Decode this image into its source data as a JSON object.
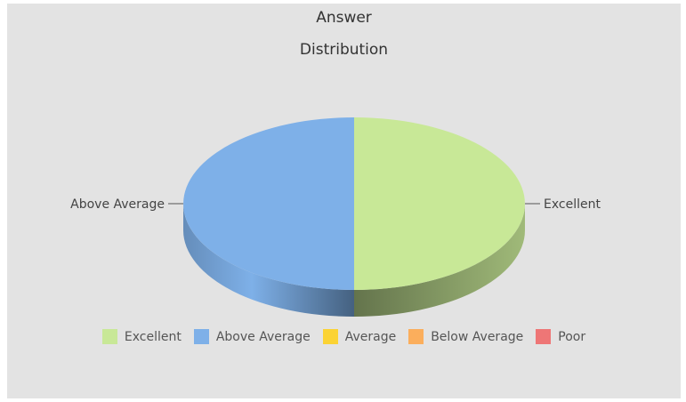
{
  "chart_data": {
    "type": "pie",
    "title": "Answer Distribution",
    "title_lines": [
      "Answer",
      "Distribution"
    ],
    "slices": [
      {
        "label": "Excellent",
        "value": 50,
        "color": "#c8e897"
      },
      {
        "label": "Above Average",
        "value": 50,
        "color": "#7eb0e8"
      },
      {
        "label": "Average",
        "value": 0,
        "color": "#fbd334"
      },
      {
        "label": "Below Average",
        "value": 0,
        "color": "#fbae5c"
      },
      {
        "label": "Poor",
        "value": 0,
        "color": "#ee7676"
      }
    ],
    "legend_placement": "bottom",
    "three_d": true
  }
}
